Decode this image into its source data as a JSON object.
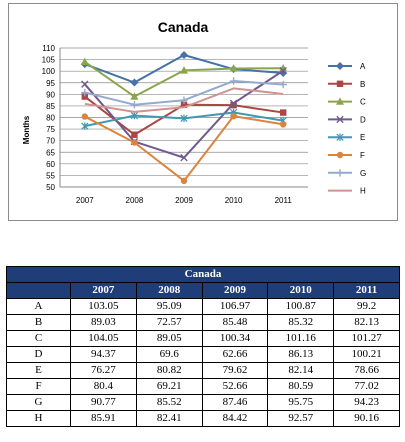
{
  "chart_data": {
    "type": "line",
    "title": "Canada",
    "xlabel": "",
    "ylabel": "Months",
    "categories": [
      "2007",
      "2008",
      "2009",
      "2010",
      "2011"
    ],
    "ylim": [
      50,
      110
    ],
    "yticks": [
      "50",
      "55",
      "60",
      "65",
      "70",
      "75",
      "80",
      "85",
      "90",
      "95",
      "100",
      "105",
      "110"
    ],
    "grid": "horizontal",
    "legend": "right",
    "series": [
      {
        "name": "A",
        "color": "#4572a7",
        "marker": "diamond",
        "values": [
          103.05,
          95.09,
          106.97,
          100.87,
          99.2
        ]
      },
      {
        "name": "B",
        "color": "#aa4643",
        "marker": "square",
        "values": [
          89.03,
          72.57,
          85.48,
          85.32,
          82.13
        ]
      },
      {
        "name": "C",
        "color": "#89a54e",
        "marker": "triangle",
        "values": [
          104.05,
          89.05,
          100.34,
          101.16,
          101.27
        ]
      },
      {
        "name": "D",
        "color": "#71588f",
        "marker": "x",
        "values": [
          94.37,
          69.6,
          62.66,
          86.13,
          100.21
        ]
      },
      {
        "name": "E",
        "color": "#4198af",
        "marker": "star",
        "values": [
          76.27,
          80.82,
          79.62,
          82.14,
          78.66
        ]
      },
      {
        "name": "F",
        "color": "#db843d",
        "marker": "circle",
        "values": [
          80.4,
          69.21,
          52.66,
          80.59,
          77.02
        ]
      },
      {
        "name": "G",
        "color": "#93a9cf",
        "marker": "plus",
        "values": [
          90.77,
          85.52,
          87.46,
          95.75,
          94.23
        ]
      },
      {
        "name": "H",
        "color": "#d19392",
        "marker": "none",
        "values": [
          85.91,
          82.41,
          84.42,
          92.57,
          90.16
        ]
      }
    ]
  },
  "table": {
    "title": "Canada",
    "headers": [
      "",
      "2007",
      "2008",
      "2009",
      "2010",
      "2011"
    ],
    "rows": [
      [
        "A",
        "103.05",
        "95.09",
        "106.97",
        "100.87",
        "99.2"
      ],
      [
        "B",
        "89.03",
        "72.57",
        "85.48",
        "85.32",
        "82.13"
      ],
      [
        "C",
        "104.05",
        "89.05",
        "100.34",
        "101.16",
        "101.27"
      ],
      [
        "D",
        "94.37",
        "69.6",
        "62.66",
        "86.13",
        "100.21"
      ],
      [
        "E",
        "76.27",
        "80.82",
        "79.62",
        "82.14",
        "78.66"
      ],
      [
        "F",
        "80.4",
        "69.21",
        "52.66",
        "80.59",
        "77.02"
      ],
      [
        "G",
        "90.77",
        "85.52",
        "87.46",
        "95.75",
        "94.23"
      ],
      [
        "H",
        "85.91",
        "82.41",
        "84.42",
        "92.57",
        "90.16"
      ]
    ]
  }
}
